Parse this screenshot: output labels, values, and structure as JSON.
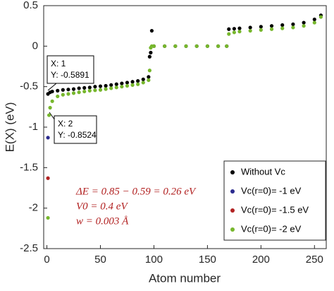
{
  "chart_data": {
    "type": "scatter",
    "xlabel": "Atom number",
    "ylabel": "E(X) (eV)",
    "xlim": [
      -3,
      261
    ],
    "ylim": [
      -2.5,
      0.5
    ],
    "xticks": [
      0,
      50,
      100,
      150,
      200,
      250
    ],
    "yticks": [
      0.5,
      0,
      -0.5,
      -1,
      -1.5,
      -2,
      -2.5
    ],
    "legend": "lower right",
    "series": [
      {
        "name": "Without Vc",
        "color": "#000000",
        "x": [
          1,
          3,
          5,
          10,
          15,
          20,
          25,
          30,
          35,
          40,
          45,
          50,
          55,
          60,
          65,
          70,
          75,
          80,
          85,
          90,
          95,
          96,
          97,
          98,
          100,
          110,
          120,
          130,
          140,
          150,
          160,
          168,
          170,
          175,
          180,
          190,
          200,
          210,
          220,
          230,
          240,
          250,
          256
        ],
        "values": [
          -0.59,
          -0.57,
          -0.56,
          -0.55,
          -0.54,
          -0.535,
          -0.53,
          -0.52,
          -0.515,
          -0.51,
          -0.5,
          -0.495,
          -0.49,
          -0.48,
          -0.47,
          -0.46,
          -0.45,
          -0.44,
          -0.43,
          -0.41,
          -0.38,
          -0.13,
          -0.08,
          0.19,
          0,
          0,
          0,
          0,
          0,
          0,
          0,
          0,
          0.21,
          0.215,
          0.22,
          0.23,
          0.24,
          0.25,
          0.26,
          0.27,
          0.29,
          0.33,
          0.38
        ]
      },
      {
        "name": "Vc(r=0)= -1 eV",
        "color": "#2b2b8f",
        "x": [
          1
        ],
        "values": [
          -1.13
        ]
      },
      {
        "name": "Vc(r=0)= -1.5 eV",
        "color": "#b22222",
        "x": [
          1
        ],
        "values": [
          -1.63
        ]
      },
      {
        "name": "Vc(r=0)= -2 eV",
        "color": "#77b72d",
        "x": [
          1,
          2,
          3,
          5,
          10,
          15,
          20,
          25,
          30,
          35,
          40,
          45,
          50,
          55,
          60,
          65,
          70,
          75,
          80,
          85,
          90,
          95,
          96,
          97,
          98,
          100,
          110,
          120,
          130,
          140,
          150,
          160,
          168,
          170,
          175,
          180,
          190,
          200,
          210,
          220,
          230,
          240,
          250,
          256
        ],
        "values": [
          -2.12,
          -0.8524,
          -0.76,
          -0.68,
          -0.62,
          -0.6,
          -0.59,
          -0.58,
          -0.57,
          -0.56,
          -0.55,
          -0.545,
          -0.54,
          -0.53,
          -0.52,
          -0.51,
          -0.5,
          -0.49,
          -0.48,
          -0.47,
          -0.45,
          -0.42,
          -0.3,
          -0.02,
          0,
          0,
          0,
          0,
          0,
          0,
          0,
          0,
          0,
          0.15,
          0.17,
          0.18,
          0.19,
          0.2,
          0.21,
          0.22,
          0.23,
          0.25,
          0.29,
          0.36
        ]
      }
    ],
    "datatips": [
      {
        "x": "X: 1",
        "y": "Y: -0.5891"
      },
      {
        "x": "X: 2",
        "y": "Y: -0.8524"
      }
    ],
    "annotations": [
      "ΔE = 0.85 − 0.59 = 0.26 eV",
      "V0 = 0.4 eV",
      "w = 0.003 Å"
    ]
  }
}
